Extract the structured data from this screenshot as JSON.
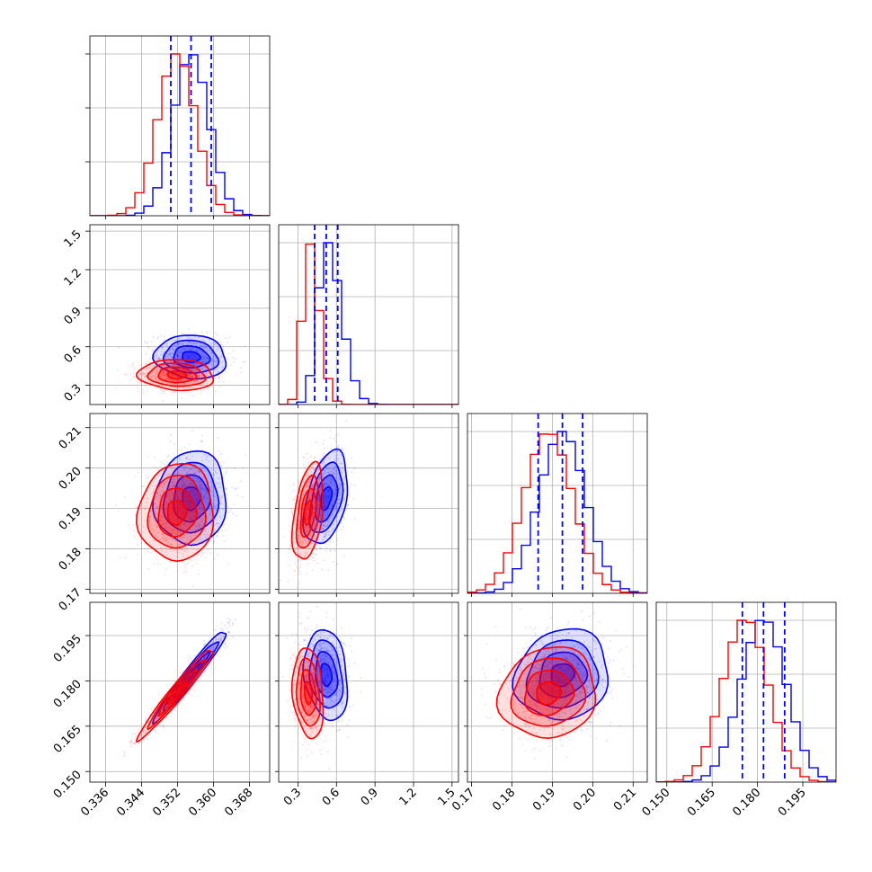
{
  "chart_data": {
    "type": "corner",
    "colors": {
      "blue": "#0000ff",
      "red": "#ff0000",
      "grid": "#b0b0b0"
    },
    "params": [
      {
        "ticks": [
          0.336,
          0.344,
          0.352,
          0.36,
          0.368
        ],
        "tick_labels": [
          "0.336",
          "0.344",
          "0.352",
          "0.360",
          "0.368"
        ],
        "range": [
          0.3325,
          0.3725
        ]
      },
      {
        "ticks": [
          0.3,
          0.6,
          0.9,
          1.2,
          1.5
        ],
        "tick_labels": [
          "0.3",
          "0.6",
          "0.9",
          "1.2",
          "1.5"
        ],
        "range": [
          0.15,
          1.55
        ]
      },
      {
        "ticks": [
          0.17,
          0.18,
          0.19,
          0.2,
          0.21
        ],
        "tick_labels": [
          "0.17",
          "0.18",
          "0.19",
          "0.20",
          "0.21"
        ],
        "range": [
          0.169,
          0.2135
        ]
      },
      {
        "ticks": [
          0.15,
          0.165,
          0.18,
          0.195
        ],
        "tick_labels": [
          "0.150",
          "0.165",
          "0.180",
          "0.195"
        ],
        "range": [
          0.1465,
          0.206
        ]
      }
    ],
    "series": [
      {
        "name": "blue",
        "color": "#0000ff",
        "mean": [
          0.355,
          0.52,
          0.1925,
          0.182
        ],
        "sd": [
          0.004,
          0.085,
          0.0058,
          0.0075
        ]
      },
      {
        "name": "red",
        "color": "#ff0000",
        "mean": [
          0.3518,
          0.38,
          0.189,
          0.176
        ],
        "sd": [
          0.0042,
          0.06,
          0.006,
          0.0075
        ]
      }
    ],
    "correlations": {
      "0-1": -0.1,
      "0-2": 0.05,
      "0-3": 0.97,
      "1-2": 0.4,
      "1-3": -0.2,
      "2-3": 0.1
    },
    "quantile_lines": [
      [
        0.3505,
        0.355,
        0.3595
      ],
      [
        0.43,
        0.52,
        0.61
      ],
      [
        0.1865,
        0.1925,
        0.1975
      ],
      [
        0.175,
        0.182,
        0.189
      ]
    ],
    "grid": true,
    "title": "",
    "xlabel": "",
    "ylabel": ""
  }
}
